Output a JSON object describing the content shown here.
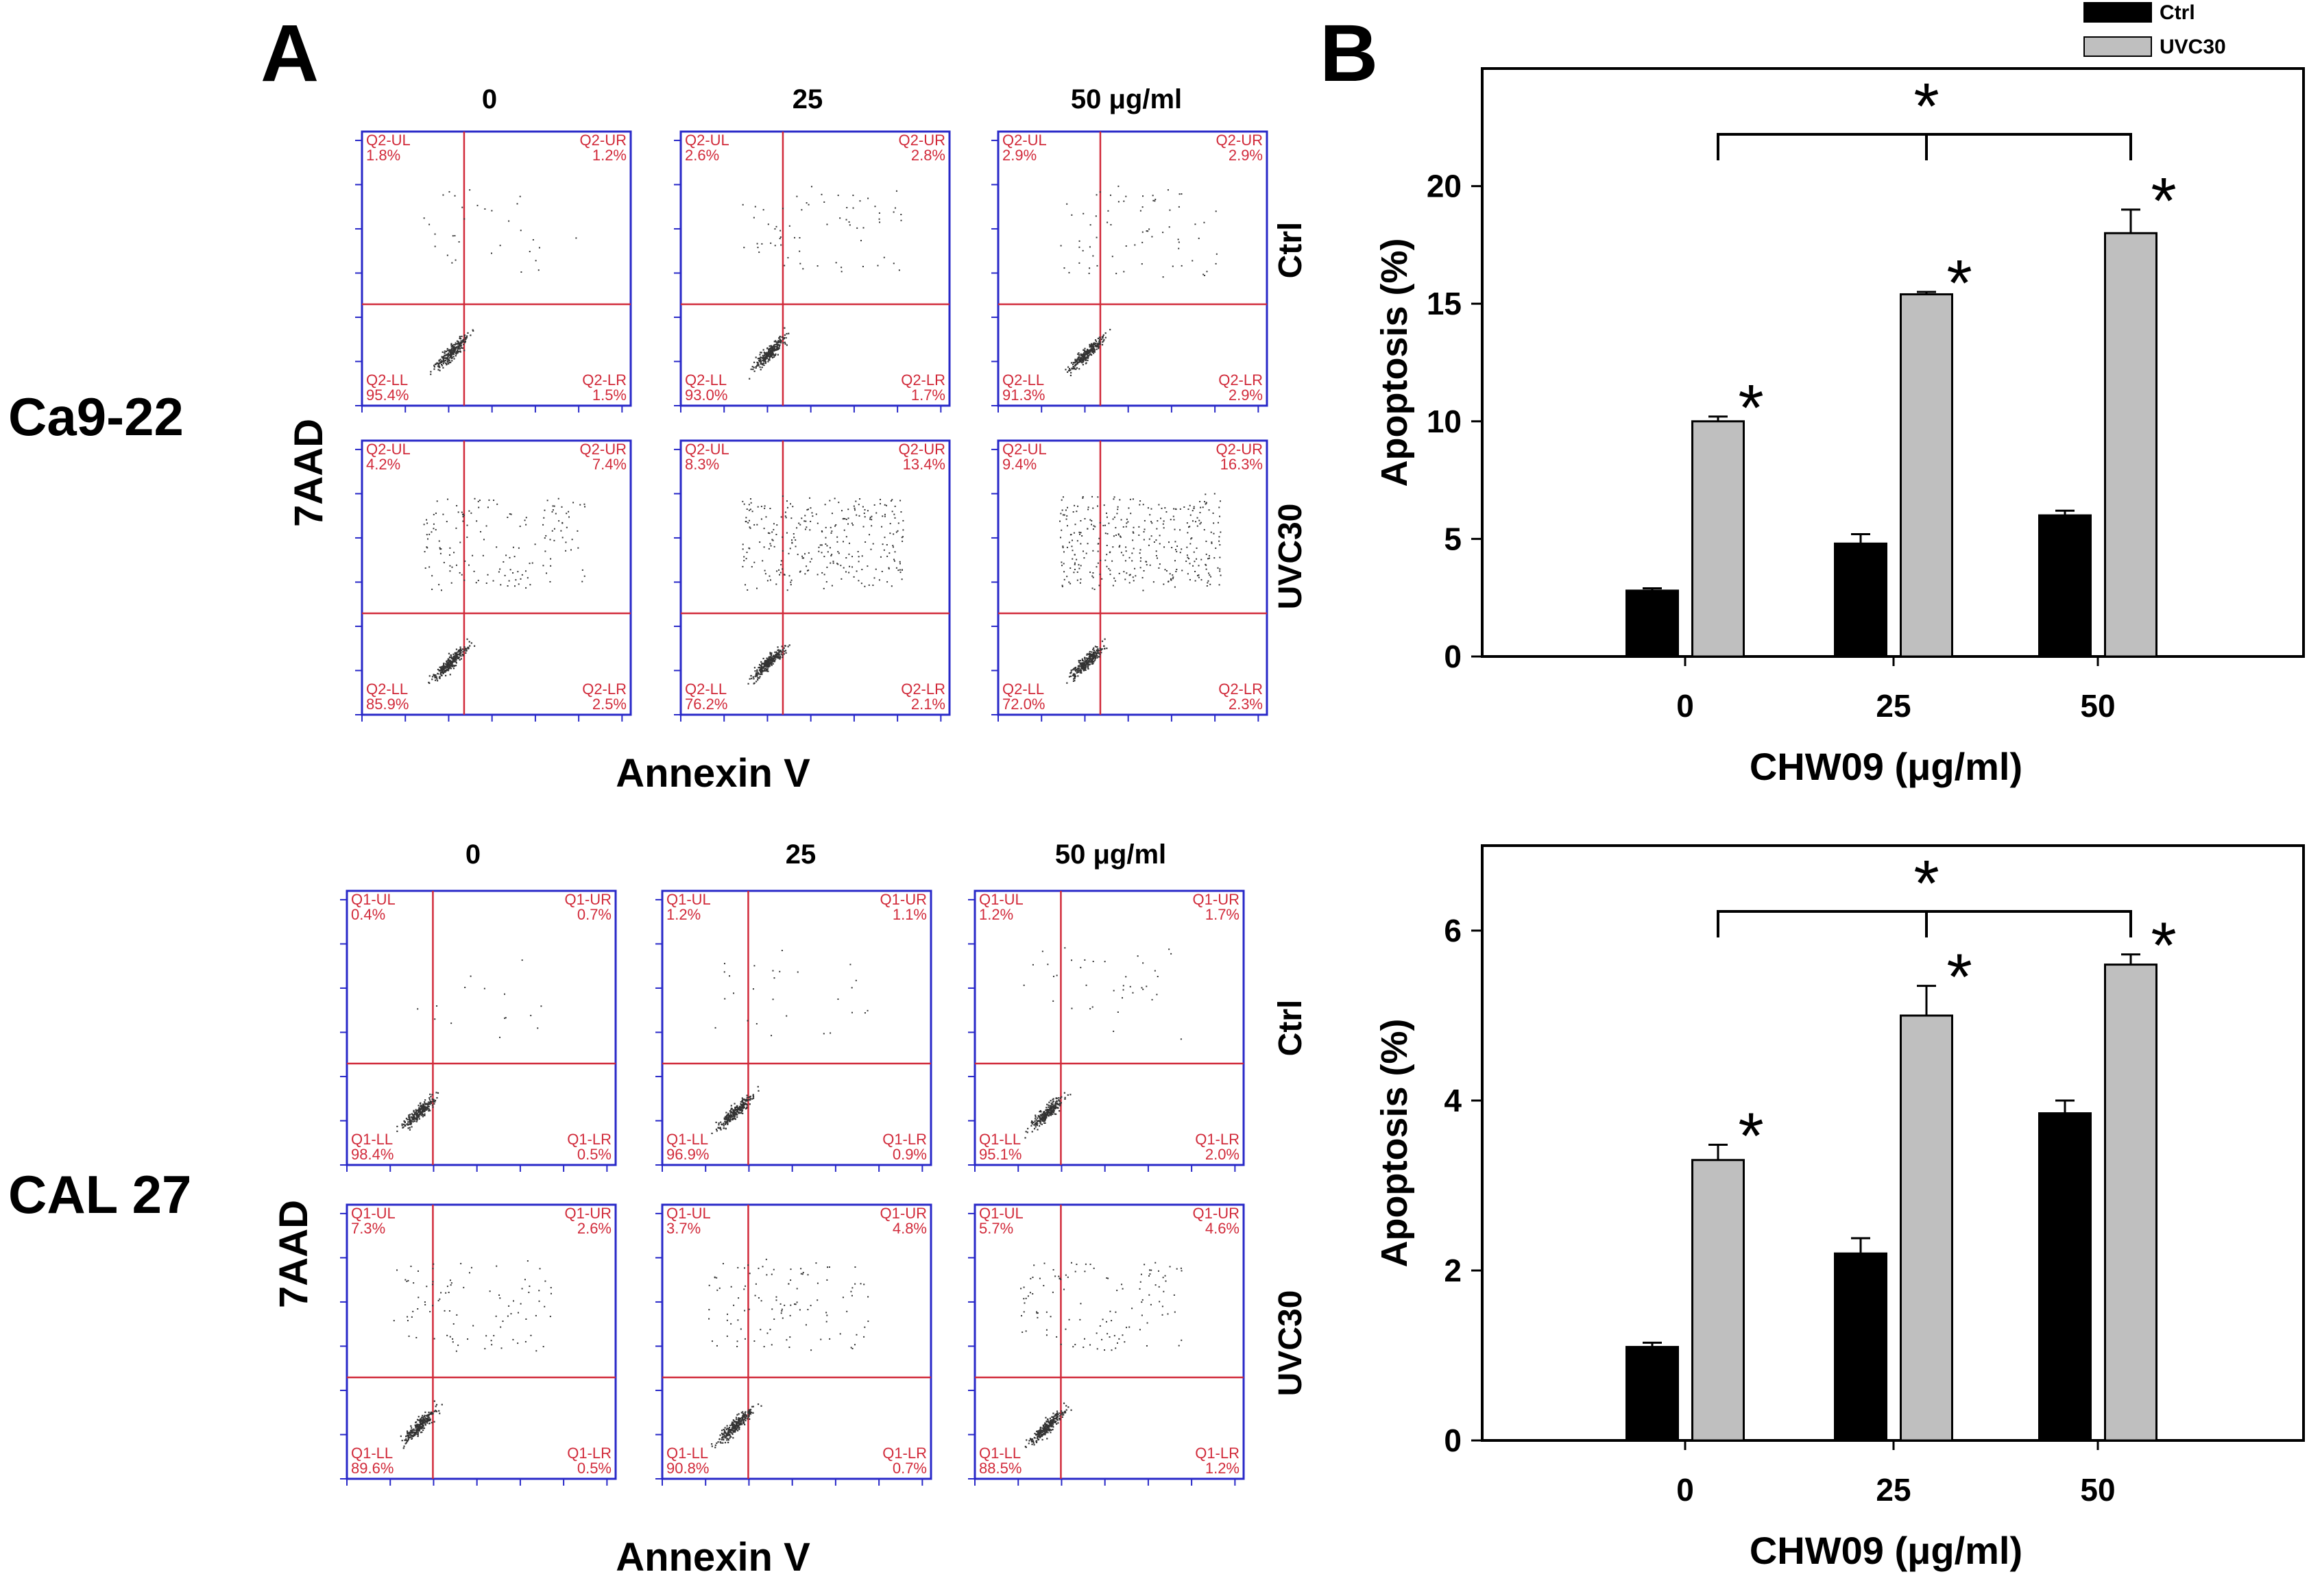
{
  "panel_a": {
    "label": "A",
    "x_axis_label": "Annexin V",
    "y_axis_label": "7AAD",
    "blocks": [
      {
        "cell_line": "Ca9-22",
        "columns": [
          "0",
          "25",
          "50 μg/ml"
        ],
        "rows": [
          "Ctrl",
          "UVC30"
        ],
        "plots": [
          [
            {
              "quadrants": [
                "Q2-UL",
                "Q2-UR",
                "Q2-LL",
                "Q2-LR"
              ],
              "values": [
                "1.8%",
                "1.2%",
                "95.4%",
                "1.5%"
              ]
            },
            {
              "quadrants": [
                "Q2-UL",
                "Q2-UR",
                "Q2-LL",
                "Q2-LR"
              ],
              "values": [
                "2.6%",
                "2.8%",
                "93.0%",
                "1.7%"
              ]
            },
            {
              "quadrants": [
                "Q2-UL",
                "Q2-UR",
                "Q2-LL",
                "Q2-LR"
              ],
              "values": [
                "2.9%",
                "2.9%",
                "91.3%",
                "2.9%"
              ]
            }
          ],
          [
            {
              "quadrants": [
                "Q2-UL",
                "Q2-UR",
                "Q2-LL",
                "Q2-LR"
              ],
              "values": [
                "4.2%",
                "7.4%",
                "85.9%",
                "2.5%"
              ]
            },
            {
              "quadrants": [
                "Q2-UL",
                "Q2-UR",
                "Q2-LL",
                "Q2-LR"
              ],
              "values": [
                "8.3%",
                "13.4%",
                "76.2%",
                "2.1%"
              ]
            },
            {
              "quadrants": [
                "Q2-UL",
                "Q2-UR",
                "Q2-LL",
                "Q2-LR"
              ],
              "values": [
                "9.4%",
                "16.3%",
                "72.0%",
                "2.3%"
              ]
            }
          ]
        ]
      },
      {
        "cell_line": "CAL 27",
        "columns": [
          "0",
          "25",
          "50 μg/ml"
        ],
        "rows": [
          "Ctrl",
          "UVC30"
        ],
        "plots": [
          [
            {
              "quadrants": [
                "Q1-UL",
                "Q1-UR",
                "Q1-LL",
                "Q1-LR"
              ],
              "values": [
                "0.4%",
                "0.7%",
                "98.4%",
                "0.5%"
              ]
            },
            {
              "quadrants": [
                "Q1-UL",
                "Q1-UR",
                "Q1-LL",
                "Q1-LR"
              ],
              "values": [
                "1.2%",
                "1.1%",
                "96.9%",
                "0.9%"
              ]
            },
            {
              "quadrants": [
                "Q1-UL",
                "Q1-UR",
                "Q1-LL",
                "Q1-LR"
              ],
              "values": [
                "1.2%",
                "1.7%",
                "95.1%",
                "2.0%"
              ]
            }
          ],
          [
            {
              "quadrants": [
                "Q1-UL",
                "Q1-UR",
                "Q1-LL",
                "Q1-LR"
              ],
              "values": [
                "7.3%",
                "2.6%",
                "89.6%",
                "0.5%"
              ]
            },
            {
              "quadrants": [
                "Q1-UL",
                "Q1-UR",
                "Q1-LL",
                "Q1-LR"
              ],
              "values": [
                "3.7%",
                "4.8%",
                "90.8%",
                "0.7%"
              ]
            },
            {
              "quadrants": [
                "Q1-UL",
                "Q1-UR",
                "Q1-LL",
                "Q1-LR"
              ],
              "values": [
                "5.7%",
                "4.6%",
                "88.5%",
                "1.2%"
              ]
            }
          ]
        ]
      }
    ]
  },
  "panel_b": {
    "label": "B",
    "legend": [
      "Ctrl",
      "UVC30"
    ],
    "significance_marker": "*"
  },
  "colors": {
    "ctrl": "#000000",
    "uvc30": "#bfbfbf",
    "plot_frame": "#2828c8",
    "gate": "#d12a3a"
  },
  "chart_data": [
    {
      "type": "bar",
      "title": "Ca9-22",
      "categories": [
        "0",
        "25",
        "50"
      ],
      "xlabel": "CHW09 (μg/ml)",
      "ylabel": "Apoptosis (%)",
      "ylim": [
        0,
        25
      ],
      "yticks": [
        "0",
        "5",
        "10",
        "15",
        "20"
      ],
      "series": [
        {
          "name": "Ctrl",
          "values": [
            2.8,
            4.8,
            6.0
          ],
          "errors": [
            0.1,
            0.4,
            0.2
          ]
        },
        {
          "name": "UVC30",
          "values": [
            10.0,
            15.4,
            18.0
          ],
          "errors": [
            0.2,
            0.1,
            1.0
          ]
        }
      ],
      "significance": "*"
    },
    {
      "type": "bar",
      "title": "CAL 27",
      "categories": [
        "0",
        "25",
        "50"
      ],
      "xlabel": "CHW09 (μg/ml)",
      "ylabel": "Apoptosis (%)",
      "ylim": [
        0,
        7
      ],
      "yticks": [
        "0",
        "2",
        "4",
        "6"
      ],
      "series": [
        {
          "name": "Ctrl",
          "values": [
            1.1,
            2.2,
            3.85
          ],
          "errors": [
            0.05,
            0.18,
            0.15
          ]
        },
        {
          "name": "UVC30",
          "values": [
            3.3,
            5.0,
            5.6
          ],
          "errors": [
            0.18,
            0.35,
            0.12
          ]
        }
      ],
      "significance": "*"
    }
  ]
}
